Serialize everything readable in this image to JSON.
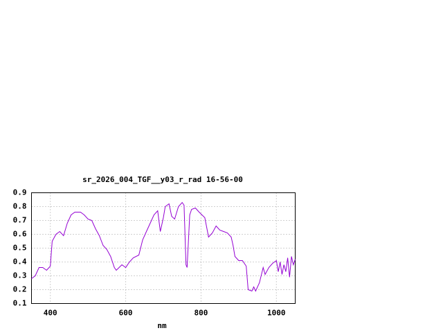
{
  "chart_data": {
    "type": "line",
    "title": "sr_2026_004_TGF__y03_r_rad 16-56-00",
    "x_label": "nm",
    "x": [
      350,
      360,
      370,
      380,
      390,
      400,
      405,
      415,
      425,
      435,
      445,
      455,
      465,
      480,
      490,
      500,
      510,
      520,
      530,
      540,
      550,
      560,
      570,
      575,
      590,
      600,
      610,
      620,
      635,
      645,
      655,
      665,
      675,
      685,
      692,
      700,
      705,
      715,
      722,
      730,
      740,
      750,
      755,
      760,
      763,
      770,
      775,
      785,
      795,
      810,
      820,
      830,
      840,
      850,
      860,
      870,
      880,
      885,
      890,
      900,
      910,
      920,
      925,
      935,
      940,
      945,
      955,
      965,
      970,
      980,
      990,
      1000,
      1005,
      1010,
      1015,
      1020,
      1025,
      1030,
      1035,
      1040,
      1045,
      1050
    ],
    "series": [
      {
        "color": "#9400d3",
        "values": [
          0.28,
          0.3,
          0.36,
          0.36,
          0.34,
          0.37,
          0.55,
          0.6,
          0.62,
          0.59,
          0.68,
          0.74,
          0.76,
          0.76,
          0.74,
          0.71,
          0.7,
          0.64,
          0.59,
          0.52,
          0.49,
          0.44,
          0.36,
          0.34,
          0.38,
          0.36,
          0.4,
          0.43,
          0.45,
          0.56,
          0.62,
          0.68,
          0.74,
          0.77,
          0.62,
          0.72,
          0.8,
          0.82,
          0.73,
          0.71,
          0.8,
          0.83,
          0.81,
          0.38,
          0.36,
          0.74,
          0.78,
          0.79,
          0.76,
          0.72,
          0.58,
          0.61,
          0.66,
          0.63,
          0.62,
          0.61,
          0.58,
          0.52,
          0.44,
          0.41,
          0.41,
          0.37,
          0.2,
          0.19,
          0.22,
          0.19,
          0.25,
          0.36,
          0.31,
          0.36,
          0.39,
          0.41,
          0.33,
          0.4,
          0.31,
          0.38,
          0.33,
          0.43,
          0.29,
          0.44,
          0.38,
          0.42
        ]
      }
    ],
    "xlim": [
      350,
      1050
    ],
    "xticks": [
      400,
      600,
      800,
      1000
    ],
    "ylim": [
      0.1,
      0.9
    ],
    "yticks": [
      0.1,
      0.2,
      0.3,
      0.4,
      0.5,
      0.6,
      0.7,
      0.8,
      0.9
    ],
    "grid": true
  }
}
